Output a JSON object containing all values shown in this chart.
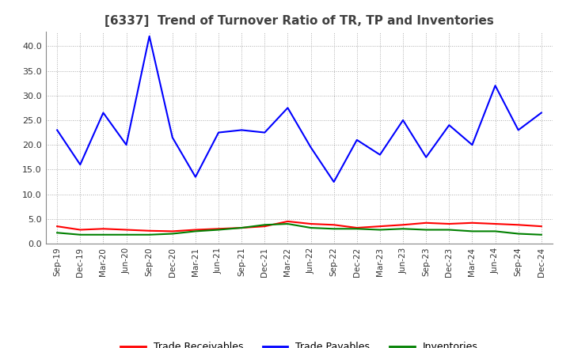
{
  "title": "[6337]  Trend of Turnover Ratio of TR, TP and Inventories",
  "x_labels": [
    "Sep-19",
    "Dec-19",
    "Mar-20",
    "Jun-20",
    "Sep-20",
    "Dec-20",
    "Mar-21",
    "Jun-21",
    "Sep-21",
    "Dec-21",
    "Mar-22",
    "Jun-22",
    "Sep-22",
    "Dec-22",
    "Mar-23",
    "Jun-23",
    "Sep-23",
    "Dec-23",
    "Mar-24",
    "Jun-24",
    "Sep-24",
    "Dec-24"
  ],
  "ylim": [
    0,
    43
  ],
  "yticks": [
    0.0,
    5.0,
    10.0,
    15.0,
    20.0,
    25.0,
    30.0,
    35.0,
    40.0
  ],
  "trade_receivables": [
    3.5,
    2.8,
    3.0,
    2.8,
    2.6,
    2.5,
    2.8,
    3.0,
    3.2,
    3.5,
    4.5,
    4.0,
    3.8,
    3.2,
    3.5,
    3.8,
    4.2,
    4.0,
    4.2,
    4.0,
    3.8,
    3.5
  ],
  "trade_payables": [
    23.0,
    16.0,
    26.5,
    20.0,
    42.0,
    21.5,
    13.5,
    22.5,
    23.0,
    22.5,
    27.5,
    19.5,
    12.5,
    21.0,
    18.0,
    25.0,
    17.5,
    24.0,
    20.0,
    32.0,
    23.0,
    26.5
  ],
  "inventories": [
    2.2,
    1.8,
    1.8,
    1.8,
    1.8,
    2.0,
    2.5,
    2.8,
    3.2,
    3.8,
    4.0,
    3.2,
    3.0,
    3.0,
    2.8,
    3.0,
    2.8,
    2.8,
    2.5,
    2.5,
    2.0,
    1.8
  ],
  "tr_color": "#ff0000",
  "tp_color": "#0000ff",
  "inv_color": "#008000",
  "background_color": "#ffffff",
  "grid_color": "#aaaaaa",
  "legend_labels": [
    "Trade Receivables",
    "Trade Payables",
    "Inventories"
  ],
  "title_color": "#404040",
  "title_fontsize": 11
}
